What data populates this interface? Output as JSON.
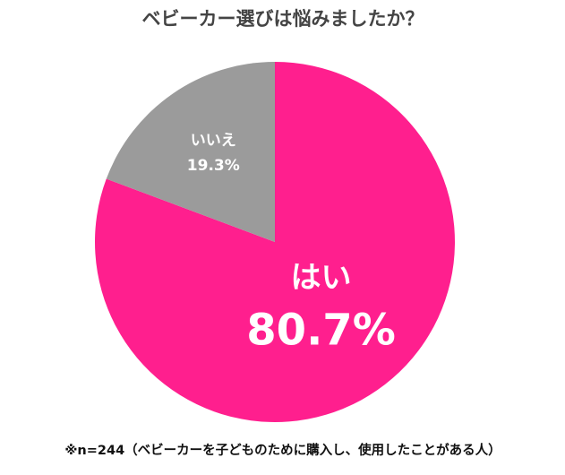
{
  "chart_data": {
    "type": "pie",
    "title": "ベビーカー選びは悩みましたか？",
    "categories": [
      "はい",
      "いいえ"
    ],
    "values": [
      80.7,
      19.3
    ],
    "value_labels": [
      "80.7%",
      "19.3%"
    ],
    "colors": [
      "#ff1f8e",
      "#9b9b9b"
    ],
    "note": "※n=244（ベビーカーを子どものために購入し、使用したことがある人）"
  }
}
